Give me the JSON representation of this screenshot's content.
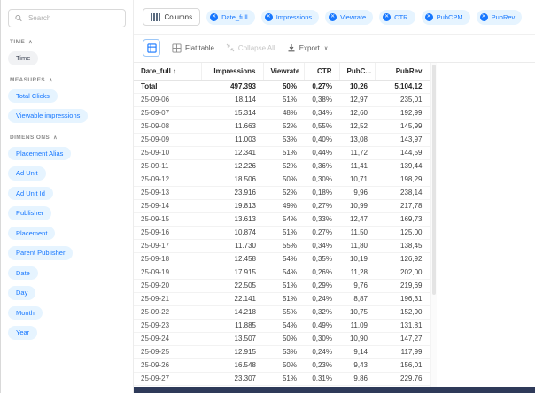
{
  "colors": {
    "accent_blue": "#1677ff",
    "pill_background": "#e6f4ff",
    "bottom_bar": "#2e3a59"
  },
  "icons": {
    "remove": "✕",
    "chevron_up": "∧",
    "sort_asc": "↑",
    "caret_down": "∨"
  },
  "sidebar": {
    "search_placeholder": "Search",
    "sections": [
      {
        "label": "TIME",
        "chip_style": "neutral",
        "items": [
          "Time"
        ]
      },
      {
        "label": "MEASURES",
        "chip_style": "blue",
        "items": [
          "Total Clicks",
          "Viewable impressions"
        ]
      },
      {
        "label": "DIMENSIONS",
        "chip_style": "blue",
        "items": [
          "Placement Alias",
          "Ad Unit",
          "Ad Unit Id",
          "Publisher",
          "Placement",
          "Parent Publisher",
          "Date",
          "Day",
          "Month",
          "Year"
        ]
      }
    ]
  },
  "columns_bar": {
    "button_label": "Columns",
    "pills": [
      "Date_full",
      "Impressions",
      "Viewrate",
      "CTR",
      "PubCPM",
      "PubRev"
    ]
  },
  "toolbar": {
    "flat_table_label": "Flat table",
    "collapse_all_label": "Collapse All",
    "export_label": "Export"
  },
  "table": {
    "headers": [
      "Date_full",
      "Impressions",
      "Viewrate",
      "CTR",
      "PubC...",
      "PubRev"
    ],
    "sorted_column": "Date_full",
    "sort_direction": "asc",
    "rows": [
      [
        "Total",
        "497.393",
        "50%",
        "0,27%",
        "10,26",
        "5.104,12"
      ],
      [
        "25-09-06",
        "18.114",
        "51%",
        "0,38%",
        "12,97",
        "235,01"
      ],
      [
        "25-09-07",
        "15.314",
        "48%",
        "0,34%",
        "12,60",
        "192,99"
      ],
      [
        "25-09-08",
        "11.663",
        "52%",
        "0,55%",
        "12,52",
        "145,99"
      ],
      [
        "25-09-09",
        "11.003",
        "53%",
        "0,40%",
        "13,08",
        "143,97"
      ],
      [
        "25-09-10",
        "12.341",
        "51%",
        "0,44%",
        "11,72",
        "144,59"
      ],
      [
        "25-09-11",
        "12.226",
        "52%",
        "0,36%",
        "11,41",
        "139,44"
      ],
      [
        "25-09-12",
        "18.506",
        "50%",
        "0,30%",
        "10,71",
        "198,29"
      ],
      [
        "25-09-13",
        "23.916",
        "52%",
        "0,18%",
        "9,96",
        "238,14"
      ],
      [
        "25-09-14",
        "19.813",
        "49%",
        "0,27%",
        "10,99",
        "217,78"
      ],
      [
        "25-09-15",
        "13.613",
        "54%",
        "0,33%",
        "12,47",
        "169,73"
      ],
      [
        "25-09-16",
        "10.874",
        "51%",
        "0,27%",
        "11,50",
        "125,00"
      ],
      [
        "25-09-17",
        "11.730",
        "55%",
        "0,34%",
        "11,80",
        "138,45"
      ],
      [
        "25-09-18",
        "12.458",
        "54%",
        "0,35%",
        "10,19",
        "126,92"
      ],
      [
        "25-09-19",
        "17.915",
        "54%",
        "0,26%",
        "11,28",
        "202,00"
      ],
      [
        "25-09-20",
        "22.505",
        "51%",
        "0,29%",
        "9,76",
        "219,69"
      ],
      [
        "25-09-21",
        "22.141",
        "51%",
        "0,24%",
        "8,87",
        "196,31"
      ],
      [
        "25-09-22",
        "14.218",
        "55%",
        "0,32%",
        "10,75",
        "152,90"
      ],
      [
        "25-09-23",
        "11.885",
        "54%",
        "0,49%",
        "11,09",
        "131,81"
      ],
      [
        "25-09-24",
        "13.507",
        "50%",
        "0,30%",
        "10,90",
        "147,27"
      ],
      [
        "25-09-25",
        "12.915",
        "53%",
        "0,24%",
        "9,14",
        "117,99"
      ],
      [
        "25-09-26",
        "16.548",
        "50%",
        "0,23%",
        "9,43",
        "156,01"
      ],
      [
        "25-09-27",
        "23.307",
        "51%",
        "0,31%",
        "9,86",
        "229,76"
      ]
    ]
  }
}
